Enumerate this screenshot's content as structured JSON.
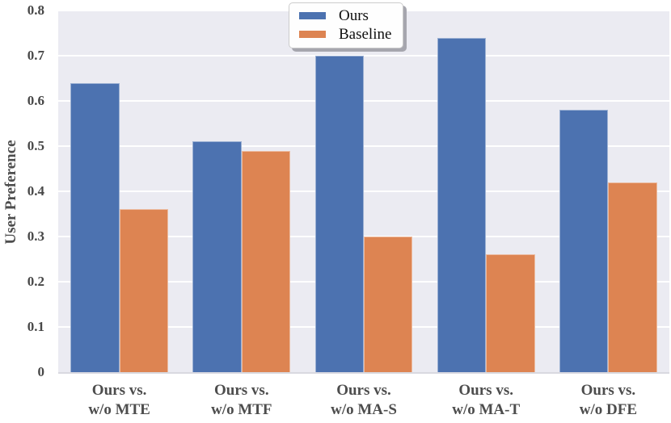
{
  "chart_data": {
    "type": "bar",
    "title": "",
    "ylabel": "User Preference",
    "xlabel": "",
    "categories": [
      "Ours vs.\nw/o MTE",
      "Ours vs.\nw/o MTF",
      "Ours vs.\nw/o MA-S",
      "Ours vs.\nw/o MA-T",
      "Ours vs.\nw/o DFE"
    ],
    "series": [
      {
        "name": "Ours",
        "color": "#4C72B0",
        "values": [
          0.64,
          0.51,
          0.7,
          0.74,
          0.58
        ]
      },
      {
        "name": "Baseline",
        "color": "#DD8452",
        "values": [
          0.36,
          0.49,
          0.3,
          0.26,
          0.42
        ]
      }
    ],
    "ylim": [
      0,
      0.8
    ],
    "yticks": [
      0,
      0.1,
      0.2,
      0.3,
      0.4,
      0.5,
      0.6,
      0.7,
      0.8
    ],
    "ytick_labels": [
      "0",
      "0.1",
      "0.2",
      "0.3",
      "0.4",
      "0.5",
      "0.6",
      "0.7",
      "0.8"
    ],
    "grid": true,
    "gridline_color": "#FFFFFF",
    "plot_background": "#EBEBF2",
    "legend_position": "upper center",
    "legend_entries": [
      "Ours",
      "Baseline"
    ]
  }
}
